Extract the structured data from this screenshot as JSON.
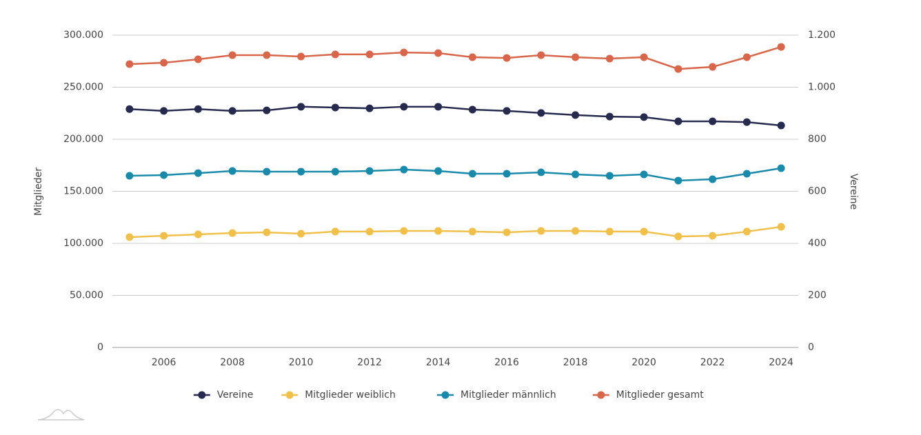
{
  "chart_data": {
    "type": "line",
    "x": [
      2005,
      2006,
      2007,
      2008,
      2009,
      2010,
      2011,
      2012,
      2013,
      2014,
      2015,
      2016,
      2017,
      2018,
      2019,
      2020,
      2021,
      2022,
      2023,
      2024
    ],
    "xlim": [
      2004.5,
      2024.5
    ],
    "xticks": [
      2006,
      2008,
      2010,
      2012,
      2014,
      2016,
      2018,
      2020,
      2022,
      2024
    ],
    "ylabel": "Mitglieder",
    "y2label": "Vereine",
    "ylim": [
      0,
      300000
    ],
    "yticks": [
      0,
      {
        "value": 50000,
        "label": "50.000"
      },
      {
        "value": 100000,
        "label": "100.000"
      },
      {
        "value": 150000,
        "label": "150.000"
      },
      {
        "value": 200000,
        "label": "200.000"
      },
      {
        "value": 250000,
        "label": "250.000"
      },
      {
        "value": 300000,
        "label": "300.000"
      }
    ],
    "y2lim": [
      0,
      1200
    ],
    "y2ticks": [
      0,
      200,
      400,
      600,
      800,
      {
        "value": 1000,
        "label": "1.000"
      },
      {
        "value": 1200,
        "label": "1.200"
      }
    ],
    "grid": true,
    "legend": "bottom",
    "series": [
      {
        "name": "Vereine",
        "color": "#262a4f",
        "axis": "y2",
        "values": [
          916,
          909,
          916,
          909,
          911,
          925,
          922,
          919,
          925,
          925,
          914,
          909,
          901,
          893,
          887,
          885,
          869,
          869,
          866,
          853
        ]
      },
      {
        "name": "Mitglieder weiblich",
        "color": "#f0c04a",
        "values": [
          106000,
          107300,
          108600,
          109900,
          110600,
          109300,
          111300,
          111300,
          111900,
          111900,
          111300,
          110600,
          111900,
          111900,
          111300,
          111300,
          106600,
          107300,
          111300,
          115900
        ]
      },
      {
        "name": "Mitglieder männlich",
        "color": "#1a8aab",
        "values": [
          164900,
          165600,
          167500,
          169500,
          168900,
          168900,
          168900,
          169500,
          170900,
          169500,
          166900,
          166900,
          168200,
          166200,
          164900,
          166200,
          160300,
          161600,
          166900,
          172200
        ]
      },
      {
        "name": "Mitglieder gesamt",
        "color": "#d9654a",
        "values": [
          272200,
          273500,
          276800,
          280800,
          280800,
          279500,
          281500,
          281500,
          283400,
          282800,
          278800,
          278100,
          280800,
          278800,
          277500,
          278800,
          267500,
          269500,
          278800,
          288700
        ]
      }
    ]
  }
}
